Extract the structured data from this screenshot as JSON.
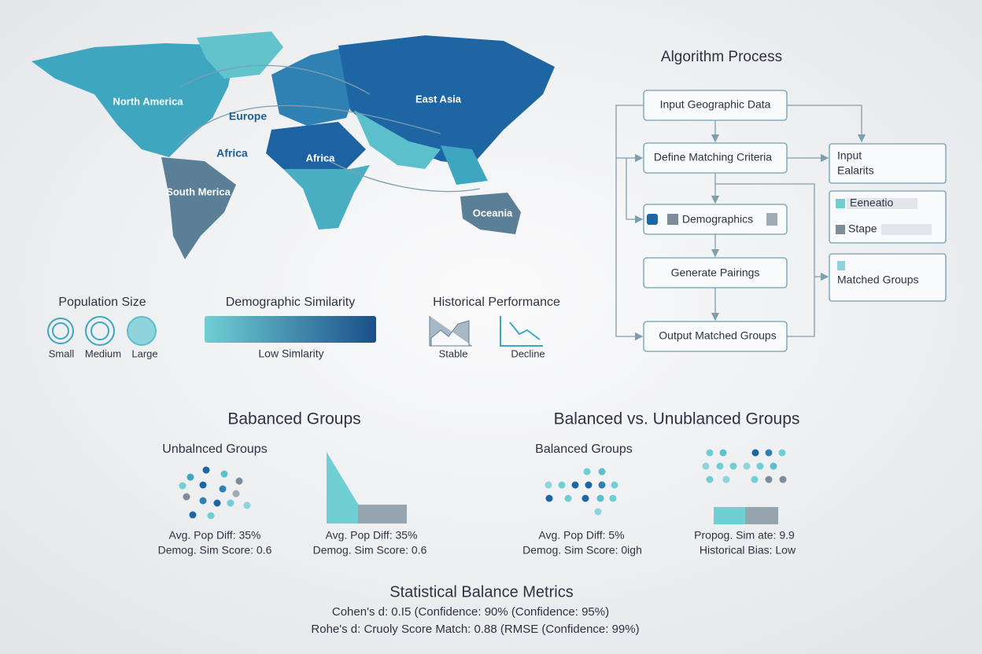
{
  "map": {
    "labels": [
      "North America",
      "Europe",
      "Africa",
      "South Merica",
      "Africa",
      "East Asia",
      "Oceania"
    ]
  },
  "legend": {
    "population_size": {
      "title": "Population Size",
      "labels": [
        "Small",
        "Medium",
        "Large"
      ]
    },
    "demographic_similarity": {
      "title": "Demographic Similarity",
      "caption": "Low Simlarity"
    },
    "historical_performance": {
      "title": "Historical Performance",
      "labels": [
        "Stable",
        "Decline"
      ]
    }
  },
  "algorithm": {
    "title": "Algorithm Process",
    "nodes": [
      "Input Geographic Data",
      "Define Matching Criteria",
      "Demographics",
      "Generate Pairings",
      "Output Matched Groups"
    ],
    "side": [
      [
        "Input",
        "Ealarits"
      ],
      [
        "Eeneatio",
        "Stape"
      ],
      [
        "Matched Groups"
      ]
    ]
  },
  "left_section": {
    "title": "Babanced Groups",
    "subtitle": "Unbalnced Groups",
    "metrics_a": [
      "Avg. Pop Diff: 35%",
      "Demog. Sim Score: 0.6"
    ],
    "metrics_b": [
      "Avg. Pop Diff: 35%",
      "Demog. Sim Score: 0.6"
    ]
  },
  "right_section": {
    "title": "Balanced vs. Unublanced Groups",
    "subtitle": "Balanced Groups",
    "metrics_a": [
      "Avg. Pop Diff: 5%",
      "Demog. Sim Score: 0igh"
    ],
    "metrics_b": [
      "Propog. Sim ate: 9.9",
      "Historical Bias: Low"
    ]
  },
  "footer": {
    "title": "Statistical Balance Metrics",
    "lines": [
      "Cohen's d: 0.I5 (Confidence: 90% (Confidence: 95%)",
      "Rohe's d: Cruoly Score Match: 0.88 (RMSE (Confidence: 99%)"
    ]
  }
}
